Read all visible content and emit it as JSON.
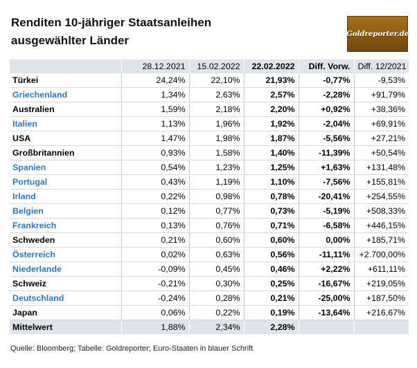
{
  "title": {
    "line1": "Renditen 10-jähriger Staatsanleihen",
    "line2": "ausgewählter Länder"
  },
  "logo": {
    "text": "Goldreporter.de"
  },
  "colors": {
    "euro_text": "#2e75b6",
    "header_bg": "#dfe3ea",
    "logo_bg": "#8a5a12"
  },
  "table": {
    "headers": [
      "",
      "28.12.2021",
      "15.02.2022",
      "22.02.2022",
      "Diff. Vorw.",
      "Diff. 12/2021"
    ],
    "rows": [
      {
        "country": "Türkei",
        "euro": false,
        "v1": "24,24%",
        "v2": "22,10%",
        "v3": "21,93%",
        "d1": "-0,77%",
        "d2": "-9,53%"
      },
      {
        "country": "Griechenland",
        "euro": true,
        "v1": "1,34%",
        "v2": "2,63%",
        "v3": "2,57%",
        "d1": "-2,28%",
        "d2": "+91,79%"
      },
      {
        "country": "Australien",
        "euro": false,
        "v1": "1,59%",
        "v2": "2,18%",
        "v3": "2,20%",
        "d1": "+0,92%",
        "d2": "+38,36%"
      },
      {
        "country": "Italien",
        "euro": true,
        "v1": "1,13%",
        "v2": "1,96%",
        "v3": "1,92%",
        "d1": "-2,04%",
        "d2": "+69,91%"
      },
      {
        "country": "USA",
        "euro": false,
        "v1": "1,47%",
        "v2": "1,98%",
        "v3": "1,87%",
        "d1": "-5,56%",
        "d2": "+27,21%"
      },
      {
        "country": "Großbritannien",
        "euro": false,
        "v1": "0,93%",
        "v2": "1,58%",
        "v3": "1,40%",
        "d1": "-11,39%",
        "d2": "+50,54%"
      },
      {
        "country": "Spanien",
        "euro": true,
        "v1": "0,54%",
        "v2": "1,23%",
        "v3": "1,25%",
        "d1": "+1,63%",
        "d2": "+131,48%"
      },
      {
        "country": "Portugal",
        "euro": true,
        "v1": "0,43%",
        "v2": "1,19%",
        "v3": "1,10%",
        "d1": "-7,56%",
        "d2": "+155,81%"
      },
      {
        "country": "Irland",
        "euro": true,
        "v1": "0,22%",
        "v2": "0,98%",
        "v3": "0,78%",
        "d1": "-20,41%",
        "d2": "+254,55%"
      },
      {
        "country": "Belgien",
        "euro": true,
        "v1": "0,12%",
        "v2": "0,77%",
        "v3": "0,73%",
        "d1": "-5,19%",
        "d2": "+508,33%"
      },
      {
        "country": "Frankreich",
        "euro": true,
        "v1": "0,13%",
        "v2": "0,76%",
        "v3": "0,71%",
        "d1": "-6,58%",
        "d2": "+446,15%"
      },
      {
        "country": "Schweden",
        "euro": false,
        "v1": "0,21%",
        "v2": "0,60%",
        "v3": "0,60%",
        "d1": "0,00%",
        "d2": "+185,71%"
      },
      {
        "country": "Österreich",
        "euro": true,
        "v1": "0,02%",
        "v2": "0,63%",
        "v3": "0,56%",
        "d1": "-11,11%",
        "d2": "+2.700,00%"
      },
      {
        "country": "Niederlande",
        "euro": true,
        "v1": "-0,09%",
        "v2": "0,45%",
        "v3": "0,46%",
        "d1": "+2,22%",
        "d2": "+611,11%"
      },
      {
        "country": "Schweiz",
        "euro": false,
        "v1": "-0,21%",
        "v2": "0,30%",
        "v3": "0,25%",
        "d1": "-16,67%",
        "d2": "+219,05%"
      },
      {
        "country": "Deutschland",
        "euro": true,
        "v1": "-0,24%",
        "v2": "0,28%",
        "v3": "0,21%",
        "d1": "-25,00%",
        "d2": "+187,50%"
      },
      {
        "country": "Japan",
        "euro": false,
        "v1": "0,06%",
        "v2": "0,22%",
        "v3": "0,19%",
        "d1": "-13,64%",
        "d2": "+216,67%"
      }
    ],
    "average": {
      "label": "Mittelwert",
      "v1": "1,88%",
      "v2": "2,34%",
      "v3": "2,28%",
      "d1": "",
      "d2": ""
    }
  },
  "footer": "Quelle: Bloomberg; Tabelle: Goldreporter; Euro-Staaten in blauer Schrift"
}
